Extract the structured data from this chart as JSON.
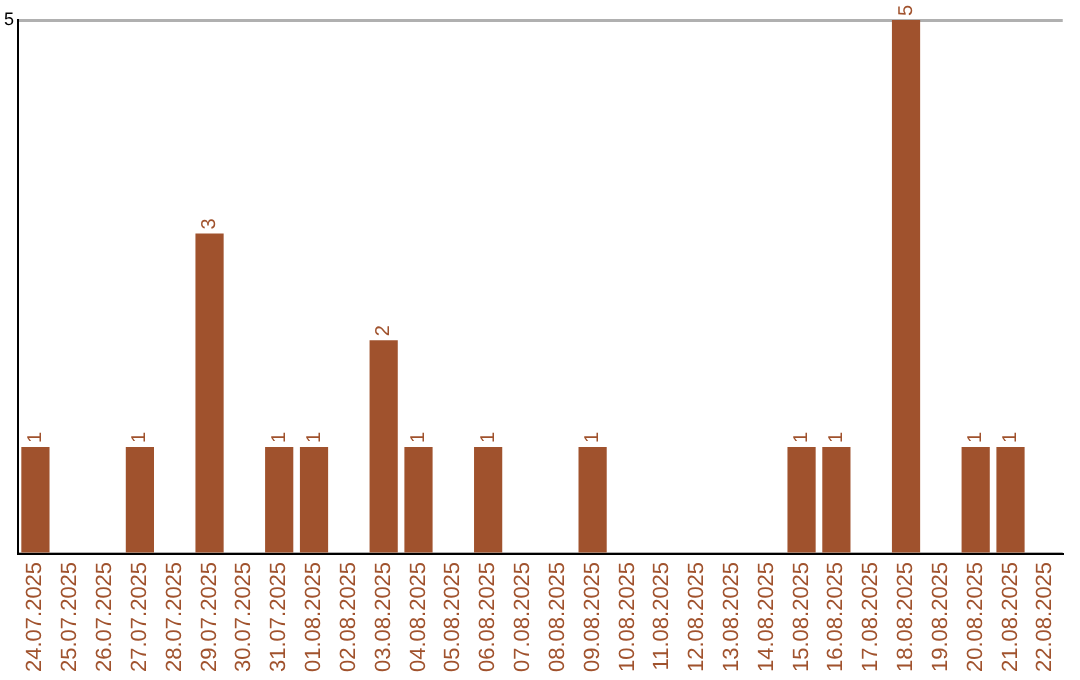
{
  "chart_data": {
    "type": "bar",
    "categories": [
      "24.07.2025",
      "25.07.2025",
      "26.07.2025",
      "27.07.2025",
      "28.07.2025",
      "29.07.2025",
      "30.07.2025",
      "31.07.2025",
      "01.08.2025",
      "02.08.2025",
      "03.08.2025",
      "04.08.2025",
      "05.08.2025",
      "06.08.2025",
      "07.08.2025",
      "08.08.2025",
      "09.08.2025",
      "10.08.2025",
      "11.08.2025",
      "12.08.2025",
      "13.08.2025",
      "14.08.2025",
      "15.08.2025",
      "16.08.2025",
      "17.08.2025",
      "18.08.2025",
      "19.08.2025",
      "20.08.2025",
      "21.08.2025",
      "22.08.2025"
    ],
    "values": [
      1,
      0,
      0,
      1,
      0,
      3,
      0,
      1,
      1,
      0,
      2,
      1,
      0,
      1,
      0,
      0,
      1,
      0,
      0,
      0,
      0,
      0,
      1,
      1,
      0,
      5,
      0,
      1,
      1,
      0
    ],
    "value_labels": [
      "1",
      null,
      null,
      "1",
      null,
      "3",
      null,
      "1",
      "1",
      null,
      "2",
      "1",
      null,
      "1",
      null,
      null,
      "1",
      null,
      null,
      null,
      null,
      null,
      "1",
      "1",
      null,
      "5",
      null,
      "1",
      "1",
      null
    ],
    "color": "#a0522d",
    "ylim": [
      0,
      5
    ],
    "yticks": [
      {
        "value": 0,
        "label": null
      },
      5
    ],
    "grid": "y",
    "legend": false
  }
}
